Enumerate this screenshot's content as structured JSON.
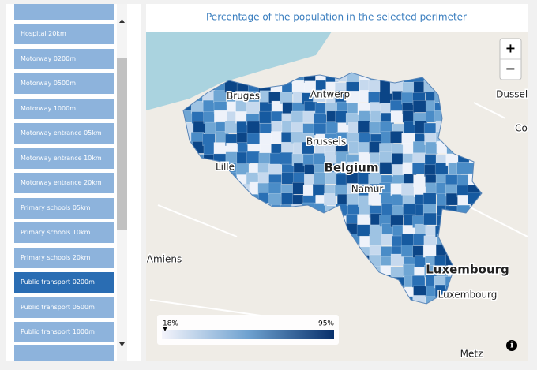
{
  "sidebar": {
    "items": [
      "Hospital 20km",
      "Motorway 0200m",
      "Motorway 0500m",
      "Motorway 1000m",
      "Motorway entrance 05km",
      "Motorway entrance 10km",
      "Motorway entrance 20km",
      "Primary schools 05km",
      "Primary schools 10km",
      "Primary schools 20km",
      "Public transport 0200m",
      "Public transport 0500m",
      "Public transport 1000m"
    ],
    "selected": "Public transport 0200m"
  },
  "map": {
    "title": "Percentage of the population in the selected perimeter",
    "zoom_in": "+",
    "zoom_out": "−",
    "places": [
      {
        "label": "Bruges",
        "bold": false
      },
      {
        "label": "Antwerp",
        "bold": false
      },
      {
        "label": "Dusseld",
        "bold": false
      },
      {
        "label": "Co",
        "bold": false
      },
      {
        "label": "Brussels",
        "bold": false
      },
      {
        "label": "Lille",
        "bold": false
      },
      {
        "label": "Belgium",
        "bold": true
      },
      {
        "label": "Namur",
        "bold": false
      },
      {
        "label": "Amiens",
        "bold": false
      },
      {
        "label": "Luxembourg",
        "bold": true
      },
      {
        "label": "Luxembourg",
        "bold": false
      },
      {
        "label": "Metz",
        "bold": false
      }
    ],
    "legend": {
      "min": "18%",
      "max": "95%"
    }
  }
}
